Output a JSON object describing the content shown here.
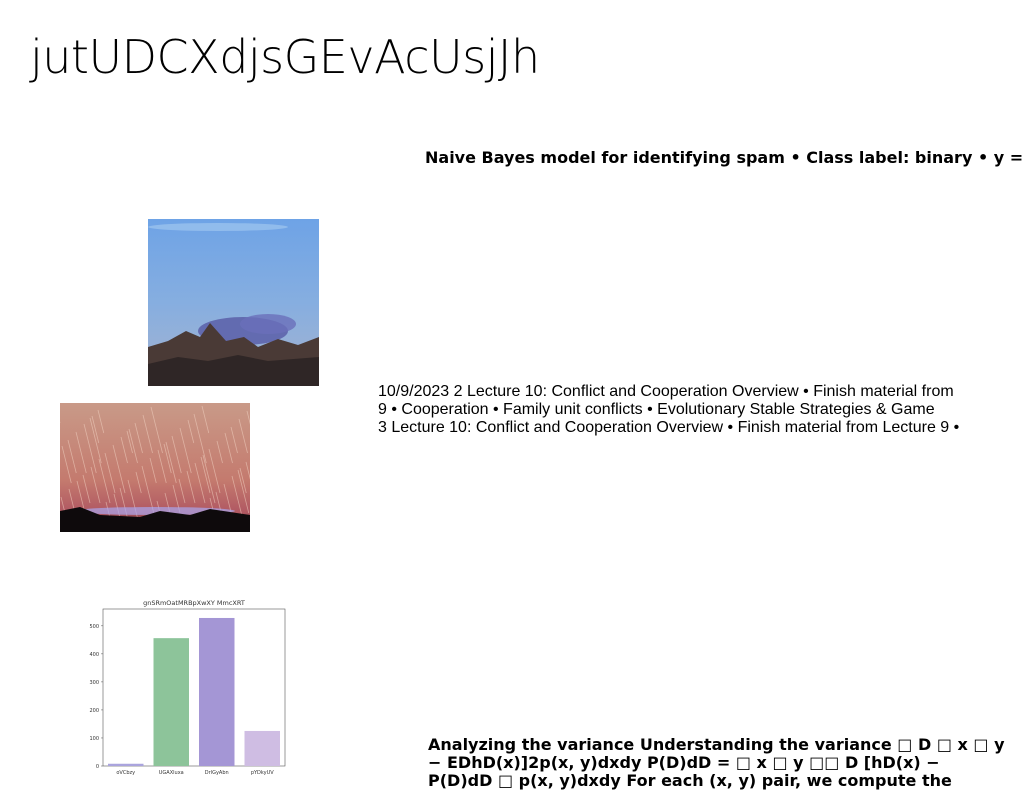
{
  "title": "jutUDCXdjsGEvAcUsjJh",
  "spam_heading": "Naive Bayes model for identifying spam • Class label: binary • y ={",
  "lecture_lines": [
    "10/9/2023 2 Lecture 10: Conflict and Cooperation Overview • Finish material from",
    "9 • Cooperation • Family unit conflicts • Evolutionary Stable Strategies & Game",
    "3 Lecture 10: Conflict and Cooperation Overview • Finish material from Lecture 9 •"
  ],
  "variance_lines": [
    "Analyzing the variance Understanding the variance □ D □ x □ y",
    "− EDhD(x)]2p(x, y)dxdy P(D)dD = □ x □ y □□ D [hD(x) −",
    "P(D)dD □ p(x, y)dxdy For each (x, y) pair, we compute the"
  ],
  "chart_data": {
    "type": "bar",
    "title": "gnSRmOatMRBpXwXY MmcXRT",
    "categories": [
      "oVCbzy",
      "UGAXluxa",
      "DrlGyAbn",
      "pYDkyUV"
    ],
    "values": [
      8,
      456,
      528,
      125
    ],
    "colors": [
      "#aaa4dd",
      "#8dc49a",
      "#a496d5",
      "#cfbde3"
    ],
    "ylim": [
      0,
      560
    ],
    "yticks": [
      0,
      100,
      200,
      300,
      400,
      500
    ],
    "xlabel": "",
    "ylabel": "",
    "grid": false
  }
}
